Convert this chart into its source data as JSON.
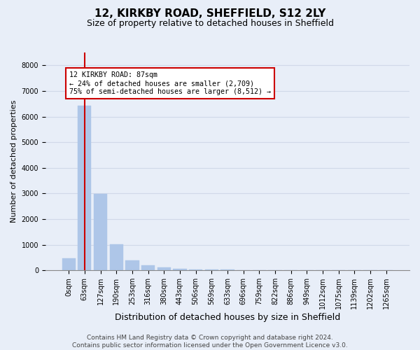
{
  "title1": "12, KIRKBY ROAD, SHEFFIELD, S12 2LY",
  "title2": "Size of property relative to detached houses in Sheffield",
  "xlabel": "Distribution of detached houses by size in Sheffield",
  "ylabel": "Number of detached properties",
  "categories": [
    "0sqm",
    "63sqm",
    "127sqm",
    "190sqm",
    "253sqm",
    "316sqm",
    "380sqm",
    "443sqm",
    "506sqm",
    "569sqm",
    "633sqm",
    "696sqm",
    "759sqm",
    "822sqm",
    "886sqm",
    "949sqm",
    "1012sqm",
    "1075sqm",
    "1139sqm",
    "1202sqm",
    "1265sqm"
  ],
  "bar_values": [
    470,
    6420,
    2970,
    1020,
    390,
    200,
    120,
    70,
    40,
    30,
    20,
    15,
    10,
    8,
    5,
    4,
    3,
    2,
    2,
    1,
    1
  ],
  "bar_color": "#aec6e8",
  "bar_edge_color": "#aec6e8",
  "grid_color": "#d0d8e8",
  "background_color": "#e8eef8",
  "ylim": [
    0,
    8500
  ],
  "yticks": [
    0,
    1000,
    2000,
    3000,
    4000,
    5000,
    6000,
    7000,
    8000
  ],
  "annotation_text": "12 KIRKBY ROAD: 87sqm\n← 24% of detached houses are smaller (2,709)\n75% of semi-detached houses are larger (8,512) →",
  "annotation_color": "#cc0000",
  "footer_text": "Contains HM Land Registry data © Crown copyright and database right 2024.\nContains public sector information licensed under the Open Government Licence v3.0.",
  "title1_fontsize": 11,
  "title2_fontsize": 9,
  "xlabel_fontsize": 9,
  "ylabel_fontsize": 8,
  "tick_fontsize": 7,
  "footer_fontsize": 6.5
}
